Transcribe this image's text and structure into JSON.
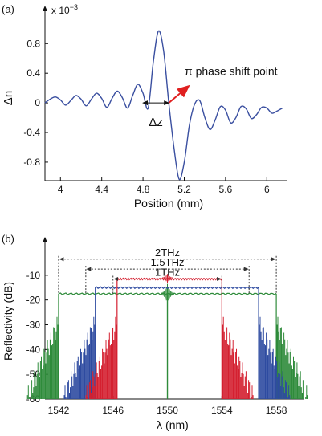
{
  "chart_data": [
    {
      "type": "line",
      "panel_label": "(a)",
      "xlabel": "Position (mm)",
      "ylabel": "Δn",
      "y_multiplier": "x 10",
      "y_multiplier_exp": "−3",
      "xlim": [
        3.85,
        6.2
      ],
      "ylim": [
        -1.05,
        1.15
      ],
      "xticks": [
        4,
        4.4,
        4.8,
        5.2,
        5.6,
        6
      ],
      "xtick_labels": [
        "4",
        "4.4",
        "4.8",
        "5.2",
        "5.6",
        "6"
      ],
      "yticks": [
        0.8,
        0.4,
        0,
        -0.4,
        -0.8
      ],
      "ytick_labels": [
        "0.8",
        "0.4",
        "0",
        "-0.4",
        "-0.8"
      ],
      "series": [
        {
          "color": "#3a4fa0",
          "x": [
            3.85,
            3.9,
            3.95,
            4.0,
            4.05,
            4.1,
            4.15,
            4.2,
            4.25,
            4.3,
            4.35,
            4.4,
            4.45,
            4.5,
            4.55,
            4.6,
            4.65,
            4.7,
            4.75,
            4.8,
            4.85,
            4.9,
            4.95,
            5.0,
            5.05,
            5.1,
            5.15,
            5.2,
            5.25,
            5.3,
            5.35,
            5.4,
            5.45,
            5.5,
            5.55,
            5.6,
            5.65,
            5.7,
            5.75,
            5.8,
            5.85,
            5.9,
            5.95,
            6.0,
            6.05,
            6.1,
            6.15
          ],
          "y": [
            0.0,
            0.05,
            0.08,
            0.04,
            -0.03,
            0.03,
            0.1,
            0.05,
            -0.04,
            0.05,
            0.13,
            0.06,
            -0.06,
            0.06,
            0.16,
            0.07,
            -0.07,
            0.1,
            0.25,
            0.13,
            -0.07,
            0.55,
            0.97,
            0.7,
            0.0,
            -0.6,
            -1.03,
            -0.8,
            -0.3,
            -0.02,
            0.03,
            -0.2,
            -0.36,
            -0.23,
            -0.05,
            -0.1,
            -0.27,
            -0.2,
            -0.05,
            -0.08,
            -0.21,
            -0.16,
            -0.06,
            -0.07,
            -0.14,
            -0.11,
            -0.07
          ]
        }
      ],
      "annotations": {
        "phase_shift_label": "π phase shift point",
        "dz_label": "Δz",
        "arrow_color": "#e02020",
        "dz_span": [
          4.8,
          5.05
        ],
        "phase_point": [
          5.05,
          0
        ],
        "arrow_tip": [
          5.22,
          0.2
        ]
      }
    },
    {
      "type": "line",
      "panel_label": "(b)",
      "xlabel": "λ (nm)",
      "ylabel": "Reflectivity (dB)",
      "xlim": [
        1541,
        1560
      ],
      "ylim": [
        -60,
        0
      ],
      "xticks": [
        1542,
        1546,
        1550,
        1554,
        1558
      ],
      "xtick_labels": [
        "1542",
        "1546",
        "1550",
        "1554",
        "1558"
      ],
      "yticks": [
        -10,
        -20,
        -30,
        -40,
        -50,
        -60
      ],
      "ytick_labels": [
        "-10",
        "-20",
        "-30",
        "-40",
        "-50",
        "-60"
      ],
      "bandwidths": [
        {
          "label": "2THz",
          "x": [
            1542.0,
            1558.0
          ],
          "y": -3.5,
          "color": "#2e8b3a"
        },
        {
          "label": "1.5THz",
          "x": [
            1544.0,
            1556.0
          ],
          "y": -7.5,
          "color": "#2e4ba0"
        },
        {
          "label": "1THz",
          "x": [
            1546.0,
            1554.0
          ],
          "y": -11.5,
          "color": "#d42030"
        }
      ],
      "series": [
        {
          "color": "#2e8b3a",
          "plateau_db": -17.5,
          "band": [
            1542.0,
            1558.0
          ],
          "center_dip_db": -60
        },
        {
          "color": "#2e4ba0",
          "plateau_db": -15,
          "band": [
            1544.7,
            1556.7
          ]
        },
        {
          "color": "#d42030",
          "plateau_db": -11.5,
          "band": [
            1546.3,
            1554.0
          ],
          "center_ripple": [
            1550,
            -11
          ]
        }
      ]
    }
  ]
}
